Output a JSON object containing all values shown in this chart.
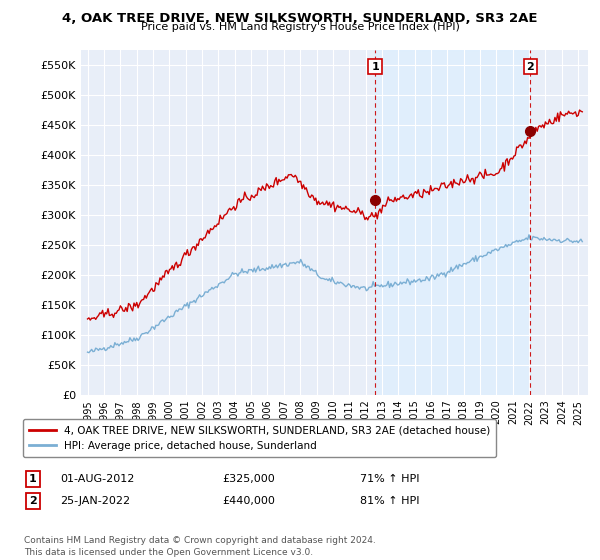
{
  "title": "4, OAK TREE DRIVE, NEW SILKSWORTH, SUNDERLAND, SR3 2AE",
  "subtitle": "Price paid vs. HM Land Registry's House Price Index (HPI)",
  "legend_line1": "4, OAK TREE DRIVE, NEW SILKSWORTH, SUNDERLAND, SR3 2AE (detached house)",
  "legend_line2": "HPI: Average price, detached house, Sunderland",
  "annotation1_date": "01-AUG-2012",
  "annotation1_price": "£325,000",
  "annotation1_hpi": "71% ↑ HPI",
  "annotation2_date": "25-JAN-2022",
  "annotation2_price": "£440,000",
  "annotation2_hpi": "81% ↑ HPI",
  "footnote": "Contains HM Land Registry data © Crown copyright and database right 2024.\nThis data is licensed under the Open Government Licence v3.0.",
  "red_color": "#cc0000",
  "blue_color": "#7bafd4",
  "shade_color": "#ddeeff",
  "background_color": "#e8eef8",
  "ylim": [
    0,
    575000
  ],
  "yticks": [
    0,
    50000,
    100000,
    150000,
    200000,
    250000,
    300000,
    350000,
    400000,
    450000,
    500000,
    550000
  ],
  "sale1_t": 2012.583,
  "sale1_price": 325000,
  "sale2_t": 2022.083,
  "sale2_price": 440000
}
